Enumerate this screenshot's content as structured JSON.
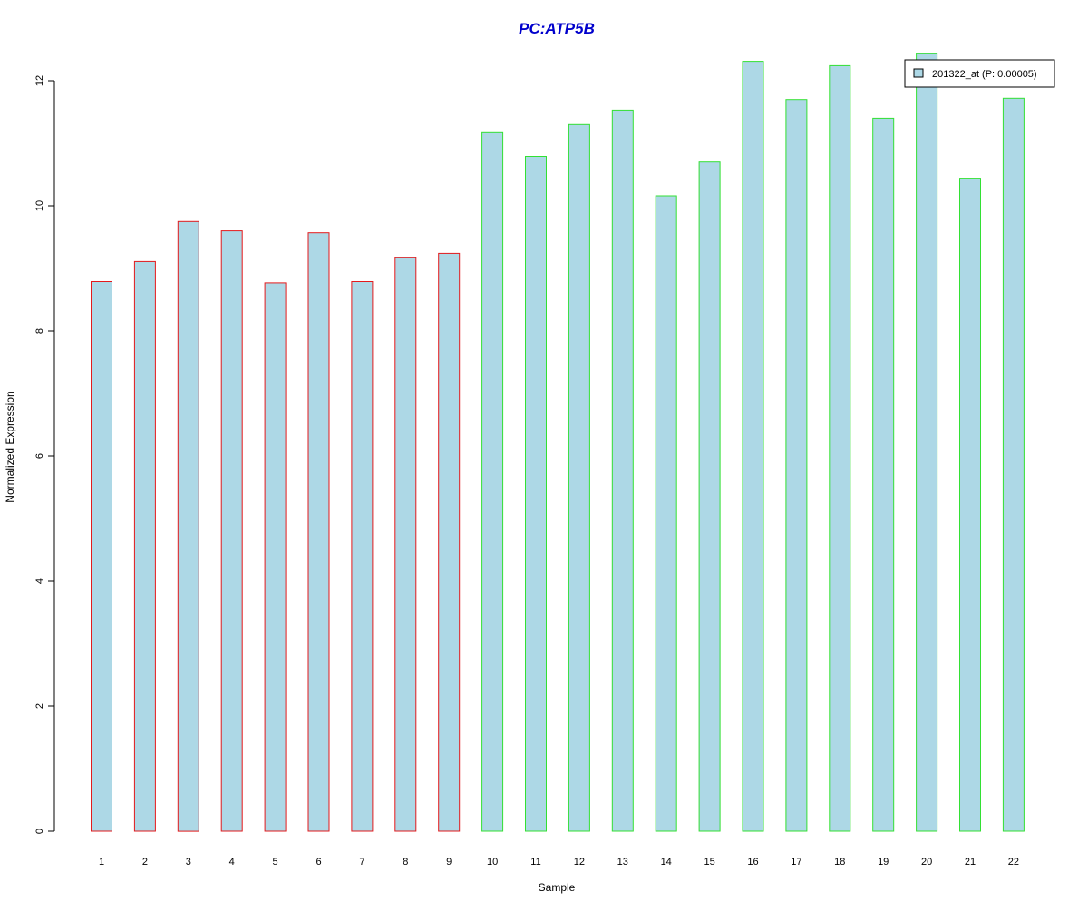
{
  "chart_data": {
    "type": "bar",
    "title": "PC:ATP5B",
    "xlabel": "Sample",
    "ylabel": "Normalized Expression",
    "categories": [
      "1",
      "2",
      "3",
      "4",
      "5",
      "6",
      "7",
      "8",
      "9",
      "10",
      "11",
      "12",
      "13",
      "14",
      "15",
      "16",
      "17",
      "18",
      "19",
      "20",
      "21",
      "22"
    ],
    "series": [
      {
        "name": "201322_at (P: 0.00005)",
        "values": [
          8.79,
          9.11,
          9.75,
          9.6,
          8.77,
          9.57,
          8.79,
          9.17,
          9.24,
          11.17,
          10.79,
          11.3,
          11.53,
          10.16,
          10.7,
          12.31,
          11.7,
          12.24,
          11.4,
          12.43,
          10.44,
          11.72
        ]
      }
    ],
    "group_border_colors": [
      "#e31a1c",
      "#e31a1c",
      "#e31a1c",
      "#e31a1c",
      "#e31a1c",
      "#e31a1c",
      "#e31a1c",
      "#e31a1c",
      "#e31a1c",
      "#33e033",
      "#33e033",
      "#33e033",
      "#33e033",
      "#33e033",
      "#33e033",
      "#33e033",
      "#33e033",
      "#33e033",
      "#33e033",
      "#33e033",
      "#33e033",
      "#33e033"
    ],
    "yticks": [
      0,
      2,
      4,
      6,
      8,
      10,
      12
    ],
    "ylim": [
      0,
      12.43
    ],
    "grid": false,
    "legend_position": "top-right",
    "colors": {
      "bar_fill": "#add8e6",
      "title": "#0000cc",
      "axis": "#000000",
      "legend_border": "#000000"
    }
  }
}
